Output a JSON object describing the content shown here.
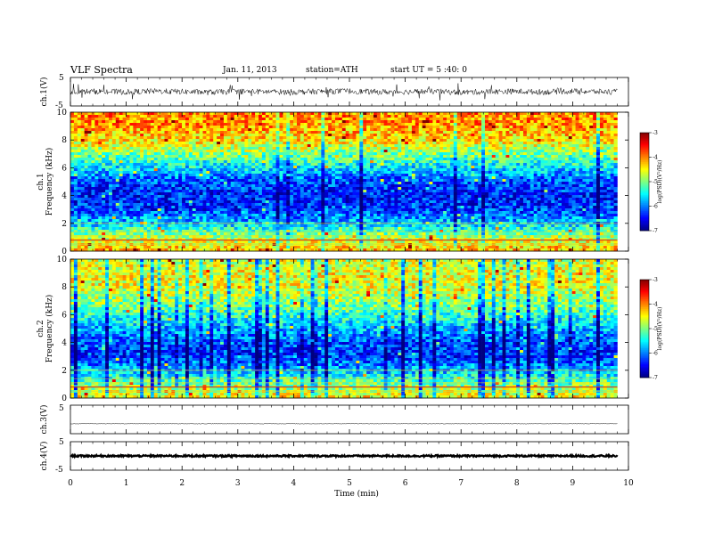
{
  "header": {
    "title": "VLF Spectra",
    "date": "Jan. 11, 2013",
    "station": "station=ATH",
    "start": "start UT = 5 :40: 0"
  },
  "chart_data": [
    {
      "type": "line",
      "panel": "ch1-waveform",
      "ylabel": "ch.1(V)",
      "ylim": [
        -5,
        5
      ],
      "yticks": [
        "5",
        "-5"
      ],
      "x": [
        0,
        0.5,
        1,
        1.5,
        2,
        2.5,
        3,
        3.5,
        4,
        4.5,
        5,
        5.5,
        6,
        6.5,
        7,
        7.5,
        8,
        8.5,
        9,
        9.5,
        9.8
      ],
      "series": [
        {
          "values": [
            0,
            0.1,
            -0.1,
            0.2,
            0,
            -0.2,
            0.1,
            0,
            -0.1,
            0.1,
            0.2,
            -0.1,
            0,
            0.1,
            -0.2,
            0,
            0.1,
            -0.1,
            0.2,
            0,
            0
          ]
        }
      ],
      "noise_amplitude": 1.0
    },
    {
      "type": "heatmap",
      "panel": "ch1-spectrogram",
      "ylabel": "ch.1\nFrequency (kHz)",
      "ylim": [
        0,
        10
      ],
      "yticks": [
        "0",
        "2",
        "4",
        "6",
        "8",
        "10"
      ],
      "colorbar": {
        "label": "log(PSD)(V²/Hz)",
        "range": [
          -7,
          -3
        ],
        "ticks": [
          "-3",
          "-4",
          "-5",
          "-6",
          "-7"
        ]
      },
      "frequency_profile_kHz": [
        0,
        0.5,
        1,
        2,
        3,
        4,
        5,
        6,
        7,
        8,
        9,
        10
      ],
      "logpsd_profile": [
        -4.2,
        -4.5,
        -4.8,
        -5.7,
        -6.3,
        -6.4,
        -6.2,
        -5.6,
        -5.0,
        -4.4,
        -4.1,
        -4.0
      ]
    },
    {
      "type": "heatmap",
      "panel": "ch2-spectrogram",
      "ylabel": "ch.2\nFrequency (kHz)",
      "ylim": [
        0,
        10
      ],
      "yticks": [
        "0",
        "2",
        "4",
        "6",
        "8",
        "10"
      ],
      "colorbar": {
        "label": "log(PSD)(V²/Hz)",
        "range": [
          -7,
          -3
        ],
        "ticks": [
          "-3",
          "-4",
          "-5",
          "-6",
          "-7"
        ]
      },
      "frequency_profile_kHz": [
        0,
        0.5,
        1,
        2,
        3,
        4,
        5,
        6,
        7,
        8,
        9,
        10
      ],
      "logpsd_profile": [
        -4.4,
        -4.7,
        -5.0,
        -5.8,
        -6.3,
        -6.2,
        -5.8,
        -5.3,
        -4.9,
        -4.6,
        -4.5,
        -4.7
      ]
    },
    {
      "type": "line",
      "panel": "ch3-waveform",
      "ylabel": "ch.3(V)",
      "ylim": [
        -5,
        5
      ],
      "yticks": [
        "5"
      ],
      "series": [
        {
          "values": [
            -1.5,
            -1.5
          ]
        }
      ],
      "x": [
        0,
        9.8
      ],
      "noise_amplitude": 0.1
    },
    {
      "type": "line",
      "panel": "ch4-waveform",
      "ylabel": "ch.4(V)",
      "ylim": [
        -5,
        5
      ],
      "yticks": [
        "5",
        "-5"
      ],
      "series": [
        {
          "values": [
            0,
            0
          ]
        }
      ],
      "x": [
        0,
        9.8
      ],
      "noise_amplitude": 0.3
    }
  ],
  "xaxis": {
    "label": "Time (min)",
    "ticks": [
      "0",
      "1",
      "2",
      "3",
      "4",
      "5",
      "6",
      "7",
      "8",
      "9",
      "10"
    ],
    "range": [
      0,
      10
    ],
    "data_end": 9.8
  }
}
